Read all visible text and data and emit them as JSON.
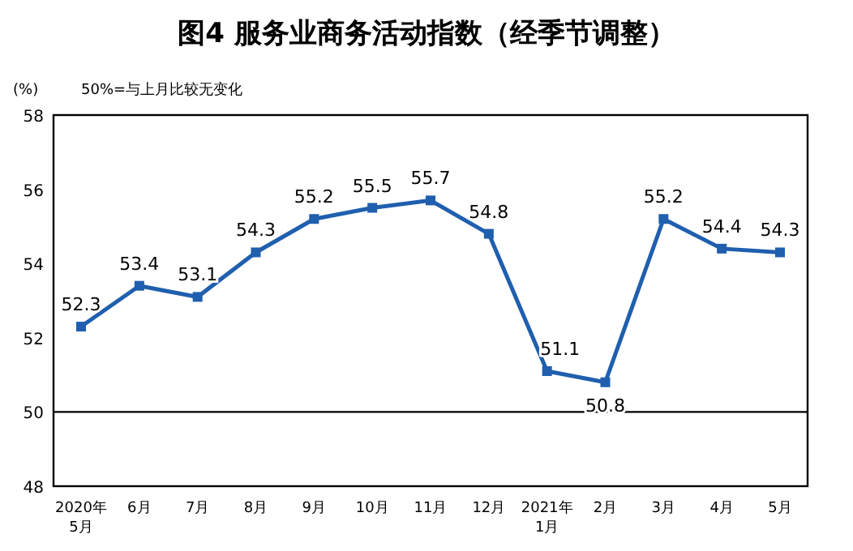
{
  "chart_data": {
    "type": "line",
    "title": "图4  服务业商务活动指数（经季节调整）",
    "ylabel": "(%)",
    "annotations": [
      "50%=与上月比较无变化"
    ],
    "categories": [
      "2020年\n5月",
      "6月",
      "7月",
      "8月",
      "9月",
      "10月",
      "11月",
      "12月",
      "2021年\n1月",
      "2月",
      "3月",
      "4月",
      "5月"
    ],
    "series": [
      {
        "color": "#1f5fae",
        "values": [
          52.3,
          53.4,
          53.1,
          54.3,
          55.2,
          55.5,
          55.7,
          54.8,
          51.1,
          50.8,
          55.2,
          54.4,
          54.3
        ]
      }
    ],
    "ylim": [
      48,
      58
    ],
    "yticks": [
      48,
      50,
      52,
      54,
      56,
      58
    ],
    "grid": false,
    "marker": "square",
    "line_style": "solid",
    "data_labels": true,
    "ref_lines": [
      {
        "axis": "y",
        "value": 50,
        "color": "#000000"
      }
    ]
  }
}
